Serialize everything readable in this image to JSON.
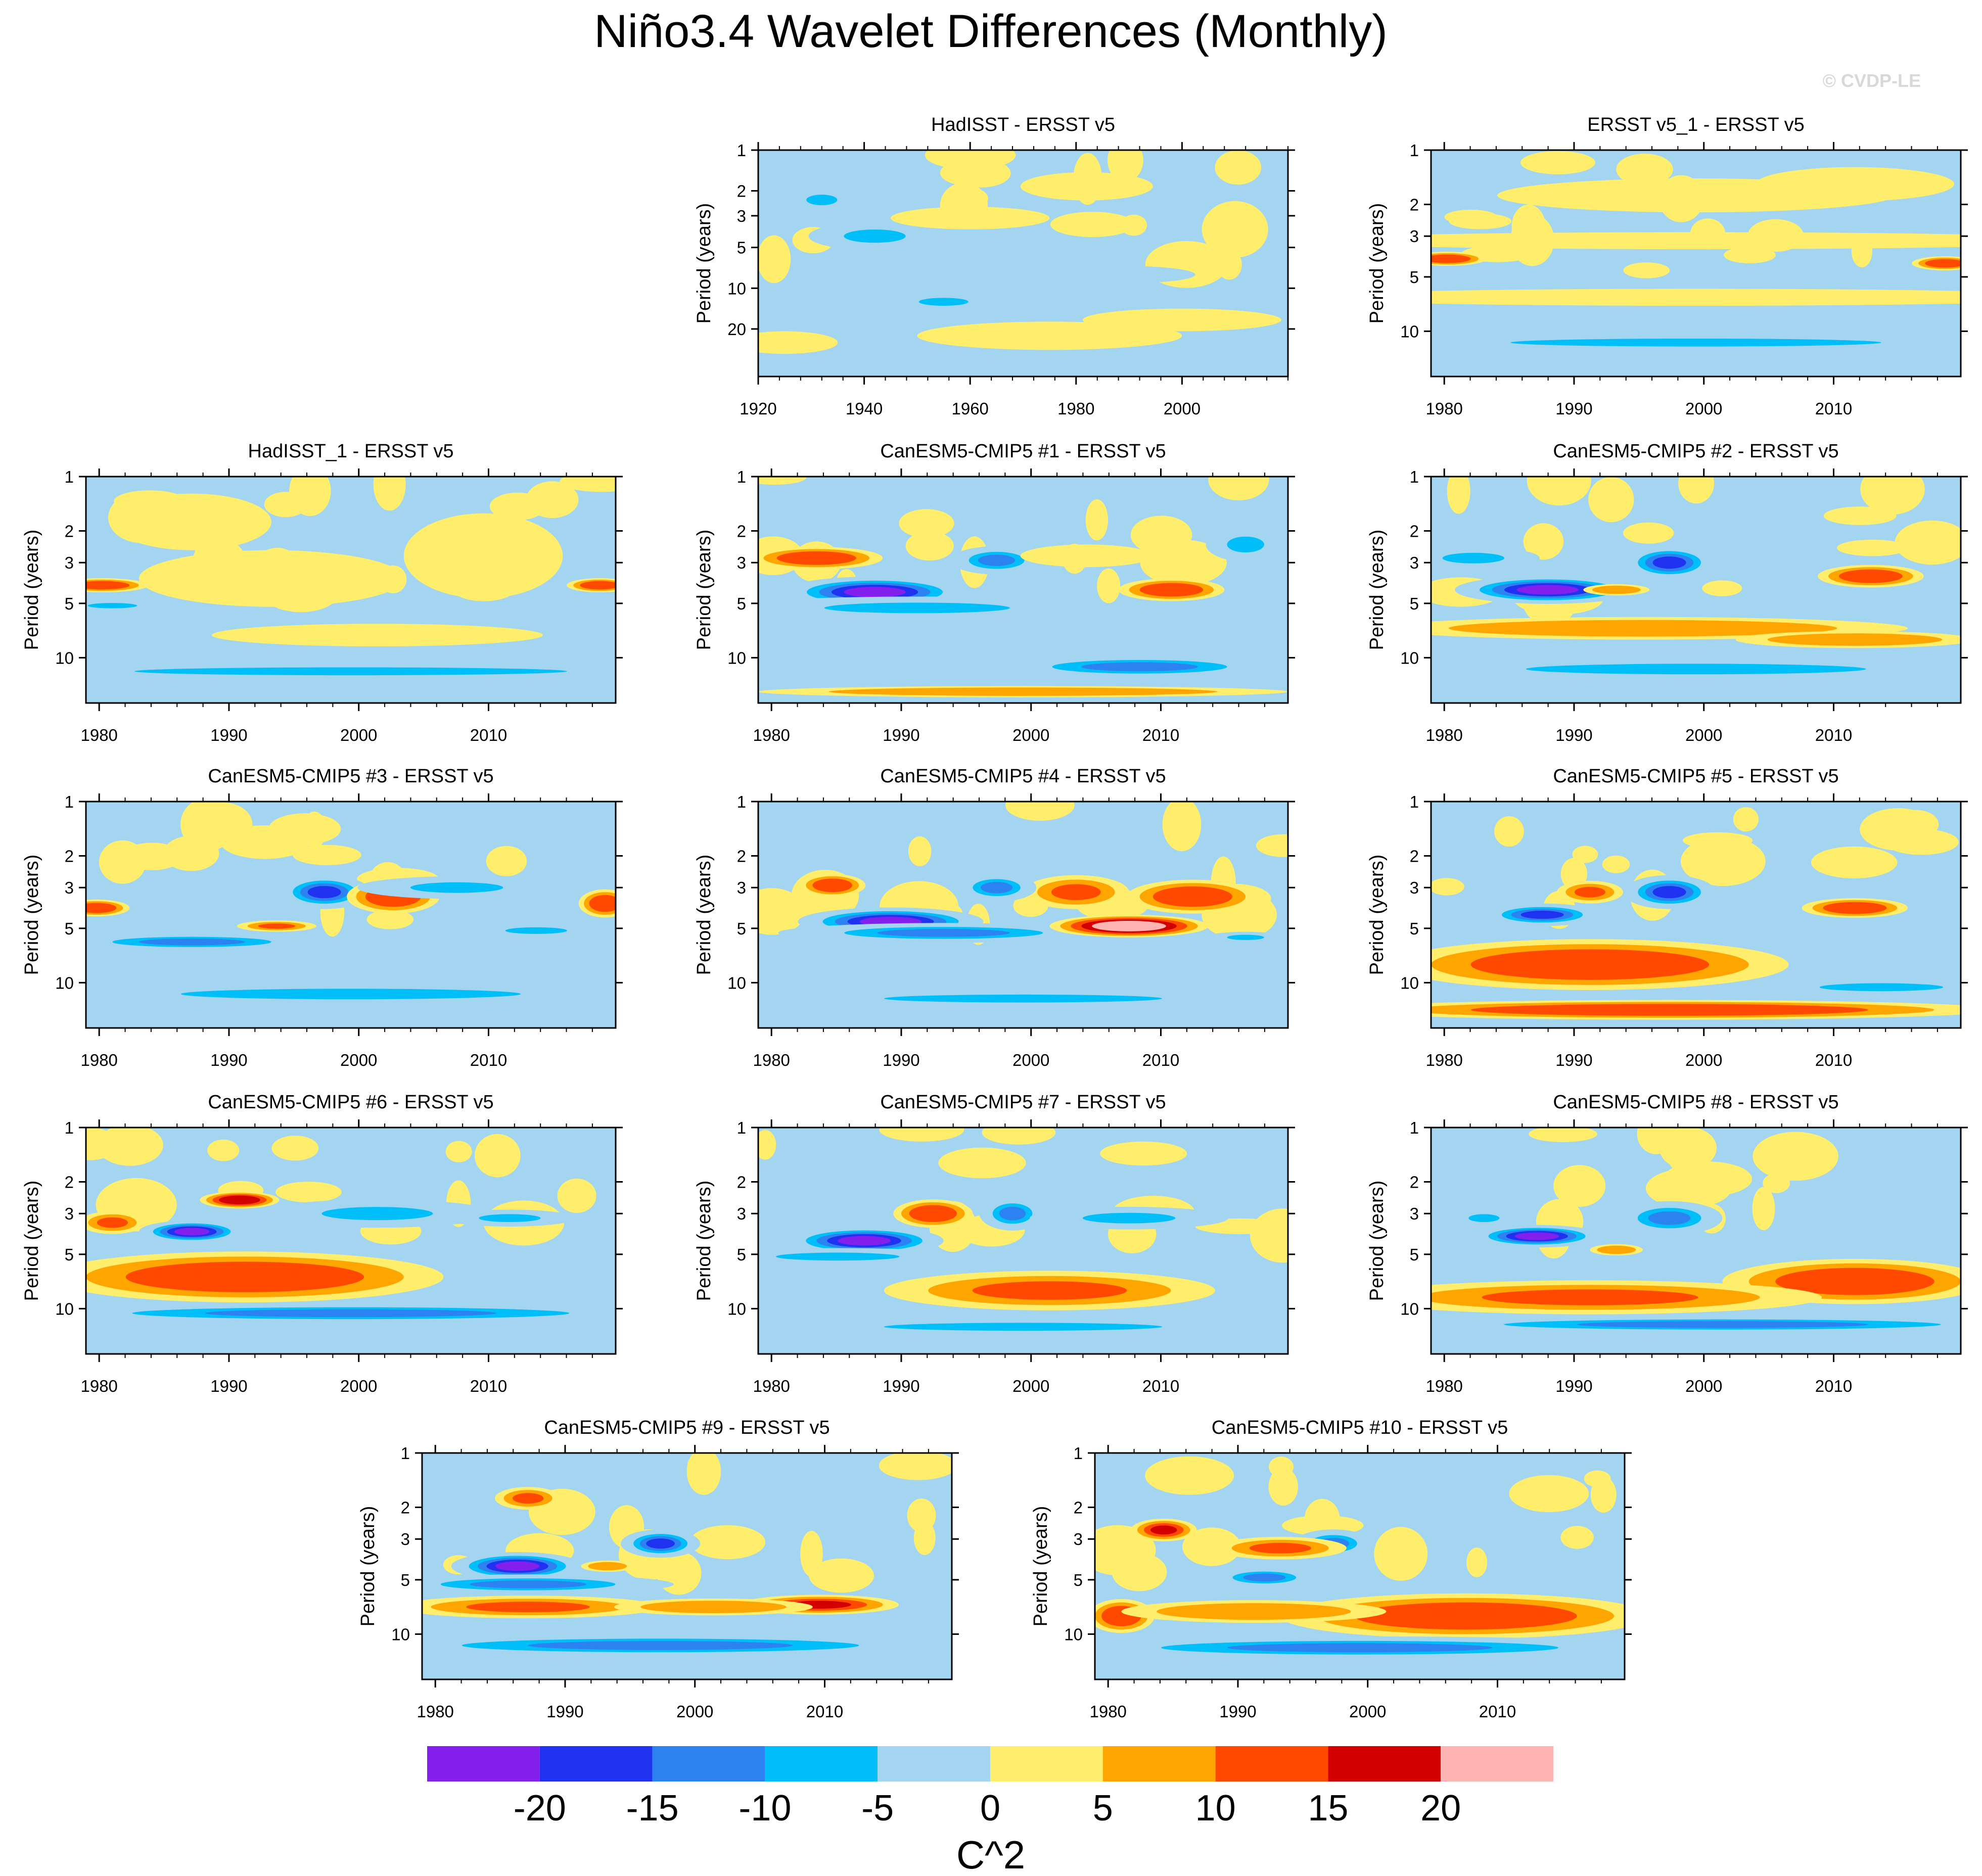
{
  "title": "Niño3.4 Wavelet Differences (Monthly)",
  "watermark": "© CVDP-LE",
  "chart_data": {
    "type": "heatmap",
    "ylabel": "Period (years)",
    "yticks": [
      "1",
      "2",
      "3",
      "5",
      "10",
      "20"
    ],
    "colorbar": {
      "label": "C^2",
      "tick_labels": [
        "-20",
        "-15",
        "-10",
        "-5",
        "0",
        "5",
        "10",
        "15",
        "20"
      ],
      "levels": [
        -20,
        -15,
        -10,
        -5,
        0,
        5,
        10,
        15,
        20
      ],
      "colors": [
        "#8420ee",
        "#1e32f0",
        "#2b82f0",
        "#00bff8",
        "#a3d5f0",
        "#ffee6b",
        "#ffa500",
        "#ff4800",
        "#d20000",
        "#ffb4b4"
      ]
    },
    "panels": [
      {
        "id": "p1",
        "title": "HadISST - ERSST v5",
        "xlabels": [
          "1920",
          "1940",
          "1960",
          "1980",
          "2000"
        ],
        "yticks": [
          "1",
          "2",
          "3",
          "5",
          "10",
          "20"
        ],
        "blobs": [
          [
            0.22,
            0.38,
            0.1,
            0.05,
            -7
          ],
          [
            0.12,
            0.22,
            0.05,
            0.04,
            -8
          ],
          [
            0.4,
            0.3,
            0.12,
            0.04,
            3
          ],
          [
            0.62,
            0.16,
            0.1,
            0.05,
            3
          ],
          [
            0.35,
            0.67,
            0.08,
            0.03,
            -6
          ],
          [
            0.55,
            0.82,
            0.2,
            0.05,
            3
          ],
          [
            0.8,
            0.75,
            0.15,
            0.04,
            3
          ],
          [
            0.05,
            0.85,
            0.08,
            0.04,
            3
          ],
          [
            0.7,
            0.55,
            0.1,
            0.03,
            -3
          ],
          [
            0.9,
            0.35,
            0.05,
            0.1,
            3
          ]
        ]
      },
      {
        "id": "p2",
        "title": "ERSST v5_1 - ERSST v5",
        "xlabels": [
          "1980",
          "1990",
          "2000",
          "2010"
        ],
        "yticks": [
          "1",
          "2",
          "3",
          "5",
          "10"
        ],
        "blobs": [
          [
            0.5,
            0.85,
            0.6,
            0.03,
            -8
          ],
          [
            0.03,
            0.48,
            0.06,
            0.025,
            14
          ],
          [
            0.97,
            0.5,
            0.05,
            0.025,
            12
          ],
          [
            0.5,
            0.4,
            0.6,
            0.03,
            3
          ],
          [
            0.5,
            0.65,
            0.6,
            0.03,
            3
          ],
          [
            0.5,
            0.2,
            0.3,
            0.06,
            3
          ],
          [
            0.8,
            0.15,
            0.15,
            0.06,
            3
          ]
        ]
      },
      {
        "id": "p3",
        "title": "HadISST_1 - ERSST v5",
        "xlabels": [
          "1980",
          "1990",
          "2000",
          "2010"
        ],
        "yticks": [
          "1",
          "2",
          "3",
          "5",
          "10"
        ],
        "blobs": [
          [
            0.5,
            0.86,
            0.7,
            0.03,
            -8
          ],
          [
            0.03,
            0.48,
            0.07,
            0.025,
            14
          ],
          [
            0.97,
            0.48,
            0.05,
            0.025,
            12
          ],
          [
            0.05,
            0.57,
            0.08,
            0.02,
            -6
          ],
          [
            0.75,
            0.35,
            0.12,
            0.15,
            3
          ],
          [
            0.35,
            0.45,
            0.2,
            0.1,
            3
          ],
          [
            0.2,
            0.2,
            0.12,
            0.1,
            3
          ],
          [
            0.55,
            0.7,
            0.25,
            0.04,
            3
          ]
        ]
      },
      {
        "id": "p4",
        "title": "CanESM5-CMIP5 #1 - ERSST v5",
        "xlabels": [
          "1980",
          "1990",
          "2000",
          "2010"
        ],
        "yticks": [
          "1",
          "2",
          "3",
          "5",
          "10"
        ],
        "blobs": [
          [
            0.22,
            0.51,
            0.14,
            0.055,
            -22
          ],
          [
            0.3,
            0.58,
            0.3,
            0.04,
            -10
          ],
          [
            0.11,
            0.36,
            0.1,
            0.04,
            12
          ],
          [
            0.45,
            0.37,
            0.07,
            0.05,
            -14
          ],
          [
            0.78,
            0.5,
            0.08,
            0.04,
            14
          ],
          [
            0.72,
            0.84,
            0.22,
            0.04,
            -12
          ],
          [
            0.5,
            0.95,
            0.4,
            0.02,
            6
          ],
          [
            0.62,
            0.35,
            0.1,
            0.04,
            3
          ],
          [
            0.92,
            0.3,
            0.06,
            0.06,
            -6
          ]
        ]
      },
      {
        "id": "p5",
        "title": "CanESM5-CMIP5 #2 - ERSST v5",
        "xlabels": [
          "1980",
          "1990",
          "2000",
          "2010"
        ],
        "yticks": [
          "1",
          "2",
          "3",
          "5",
          "10"
        ],
        "blobs": [
          [
            0.22,
            0.5,
            0.14,
            0.05,
            -22
          ],
          [
            0.5,
            0.85,
            0.55,
            0.04,
            -10
          ],
          [
            0.45,
            0.38,
            0.07,
            0.06,
            -16
          ],
          [
            0.83,
            0.44,
            0.08,
            0.04,
            14
          ],
          [
            0.4,
            0.67,
            0.4,
            0.04,
            6
          ],
          [
            0.8,
            0.72,
            0.18,
            0.03,
            7
          ],
          [
            0.08,
            0.36,
            0.1,
            0.04,
            -8
          ],
          [
            0.35,
            0.5,
            0.05,
            0.02,
            8
          ]
        ]
      },
      {
        "id": "p6",
        "title": "CanESM5-CMIP5 #3 - ERSST v5",
        "xlabels": [
          "1980",
          "1990",
          "2000",
          "2010"
        ],
        "yticks": [
          "1",
          "2",
          "3",
          "5",
          "10"
        ],
        "blobs": [
          [
            0.02,
            0.47,
            0.05,
            0.03,
            14
          ],
          [
            0.2,
            0.62,
            0.2,
            0.03,
            -12
          ],
          [
            0.45,
            0.4,
            0.07,
            0.06,
            -16
          ],
          [
            0.58,
            0.42,
            0.07,
            0.06,
            12
          ],
          [
            0.36,
            0.55,
            0.06,
            0.02,
            10
          ],
          [
            0.5,
            0.85,
            0.55,
            0.04,
            -8
          ],
          [
            0.98,
            0.45,
            0.04,
            0.05,
            12
          ],
          [
            0.7,
            0.38,
            0.15,
            0.04,
            -8
          ],
          [
            0.85,
            0.57,
            0.1,
            0.025,
            -7
          ]
        ]
      },
      {
        "id": "p7",
        "title": "CanESM5-CMIP5 #4 - ERSST v5",
        "xlabels": [
          "1980",
          "1990",
          "2000",
          "2010"
        ],
        "yticks": [
          "1",
          "2",
          "3",
          "5",
          "10"
        ],
        "blobs": [
          [
            0.25,
            0.53,
            0.14,
            0.05,
            -21
          ],
          [
            0.35,
            0.58,
            0.25,
            0.035,
            -12
          ],
          [
            0.7,
            0.55,
            0.12,
            0.04,
            22
          ],
          [
            0.82,
            0.42,
            0.1,
            0.06,
            14
          ],
          [
            0.6,
            0.4,
            0.08,
            0.06,
            10
          ],
          [
            0.45,
            0.38,
            0.06,
            0.05,
            -14
          ],
          [
            0.14,
            0.37,
            0.05,
            0.04,
            14
          ],
          [
            0.5,
            0.87,
            0.45,
            0.03,
            -9
          ],
          [
            0.92,
            0.6,
            0.06,
            0.02,
            -6
          ]
        ]
      },
      {
        "id": "p8",
        "title": "CanESM5-CMIP5 #5 - ERSST v5",
        "xlabels": [
          "1980",
          "1990",
          "2000",
          "2010"
        ],
        "yticks": [
          "1",
          "2",
          "3",
          "5",
          "10"
        ],
        "blobs": [
          [
            0.28,
            0.72,
            0.2,
            0.07,
            22
          ],
          [
            0.3,
            0.72,
            0.3,
            0.09,
            14
          ],
          [
            0.45,
            0.92,
            0.5,
            0.035,
            11
          ],
          [
            0.21,
            0.5,
            0.09,
            0.04,
            -18
          ],
          [
            0.45,
            0.4,
            0.07,
            0.06,
            -16
          ],
          [
            0.8,
            0.47,
            0.08,
            0.035,
            14
          ],
          [
            0.3,
            0.4,
            0.05,
            0.04,
            10
          ],
          [
            0.85,
            0.82,
            0.2,
            0.03,
            -8
          ]
        ]
      },
      {
        "id": "p9",
        "title": "CanESM5-CMIP5 #6 - ERSST v5",
        "xlabels": [
          "1980",
          "1990",
          "2000",
          "2010"
        ],
        "yticks": [
          "1",
          "2",
          "3",
          "5",
          "10"
        ],
        "blobs": [
          [
            0.27,
            0.64,
            0.2,
            0.06,
            22
          ],
          [
            0.3,
            0.66,
            0.3,
            0.09,
            14
          ],
          [
            0.2,
            0.46,
            0.08,
            0.04,
            -21
          ],
          [
            0.29,
            0.32,
            0.06,
            0.03,
            16
          ],
          [
            0.5,
            0.82,
            0.55,
            0.035,
            -11
          ],
          [
            0.55,
            0.38,
            0.18,
            0.05,
            -8
          ],
          [
            0.8,
            0.4,
            0.1,
            0.03,
            -8
          ],
          [
            0.05,
            0.42,
            0.05,
            0.04,
            10
          ]
        ]
      },
      {
        "id": "p10",
        "title": "CanESM5-CMIP5 #7 - ERSST v5",
        "xlabels": [
          "1980",
          "1990",
          "2000",
          "2010"
        ],
        "yticks": [
          "1",
          "2",
          "3",
          "5",
          "10"
        ],
        "blobs": [
          [
            0.2,
            0.5,
            0.12,
            0.05,
            -21
          ],
          [
            0.15,
            0.57,
            0.2,
            0.03,
            -10
          ],
          [
            0.5,
            0.72,
            0.16,
            0.045,
            16
          ],
          [
            0.55,
            0.72,
            0.25,
            0.07,
            10
          ],
          [
            0.33,
            0.38,
            0.06,
            0.05,
            14
          ],
          [
            0.48,
            0.38,
            0.05,
            0.06,
            -14
          ],
          [
            0.5,
            0.88,
            0.45,
            0.03,
            -9
          ],
          [
            0.7,
            0.4,
            0.15,
            0.04,
            -8
          ]
        ]
      },
      {
        "id": "p11",
        "title": "CanESM5-CMIP5 #8 - ERSST v5",
        "xlabels": [
          "1980",
          "1990",
          "2000",
          "2010"
        ],
        "yticks": [
          "1",
          "2",
          "3",
          "5",
          "10"
        ],
        "blobs": [
          [
            0.8,
            0.66,
            0.16,
            0.055,
            22
          ],
          [
            0.8,
            0.68,
            0.2,
            0.08,
            14
          ],
          [
            0.3,
            0.75,
            0.35,
            0.06,
            10
          ],
          [
            0.2,
            0.48,
            0.1,
            0.04,
            -21
          ],
          [
            0.45,
            0.4,
            0.08,
            0.06,
            -14
          ],
          [
            0.35,
            0.54,
            0.04,
            0.02,
            8
          ],
          [
            0.55,
            0.87,
            0.55,
            0.03,
            -11
          ],
          [
            0.1,
            0.4,
            0.05,
            0.03,
            -8
          ]
        ]
      },
      {
        "id": "p12",
        "title": "CanESM5-CMIP5 #9 - ERSST v5",
        "xlabels": [
          "1980",
          "1990",
          "2000",
          "2010"
        ],
        "yticks": [
          "1",
          "2",
          "3",
          "5",
          "10"
        ],
        "blobs": [
          [
            0.18,
            0.5,
            0.1,
            0.05,
            -21
          ],
          [
            0.2,
            0.58,
            0.22,
            0.035,
            -12
          ],
          [
            0.45,
            0.4,
            0.06,
            0.05,
            -16
          ],
          [
            0.75,
            0.67,
            0.12,
            0.035,
            15
          ],
          [
            0.2,
            0.68,
            0.2,
            0.04,
            10
          ],
          [
            0.55,
            0.68,
            0.15,
            0.03,
            6
          ],
          [
            0.45,
            0.85,
            0.5,
            0.04,
            -11
          ],
          [
            0.35,
            0.5,
            0.04,
            0.02,
            6
          ],
          [
            0.2,
            0.2,
            0.05,
            0.04,
            10
          ]
        ]
      },
      {
        "id": "p13",
        "title": "CanESM5-CMIP5 #10 - ERSST v5",
        "xlabels": [
          "1980",
          "1990",
          "2000",
          "2010"
        ],
        "yticks": [
          "1",
          "2",
          "3",
          "5",
          "10"
        ],
        "blobs": [
          [
            0.72,
            0.7,
            0.2,
            0.055,
            22
          ],
          [
            0.7,
            0.72,
            0.28,
            0.08,
            14
          ],
          [
            0.05,
            0.72,
            0.05,
            0.06,
            14
          ],
          [
            0.13,
            0.34,
            0.05,
            0.04,
            15
          ],
          [
            0.45,
            0.4,
            0.06,
            0.05,
            -14
          ],
          [
            0.32,
            0.55,
            0.08,
            0.035,
            -12
          ],
          [
            0.5,
            0.86,
            0.5,
            0.04,
            -11
          ],
          [
            0.35,
            0.42,
            0.1,
            0.04,
            10
          ],
          [
            0.3,
            0.7,
            0.2,
            0.04,
            8
          ]
        ]
      }
    ]
  }
}
